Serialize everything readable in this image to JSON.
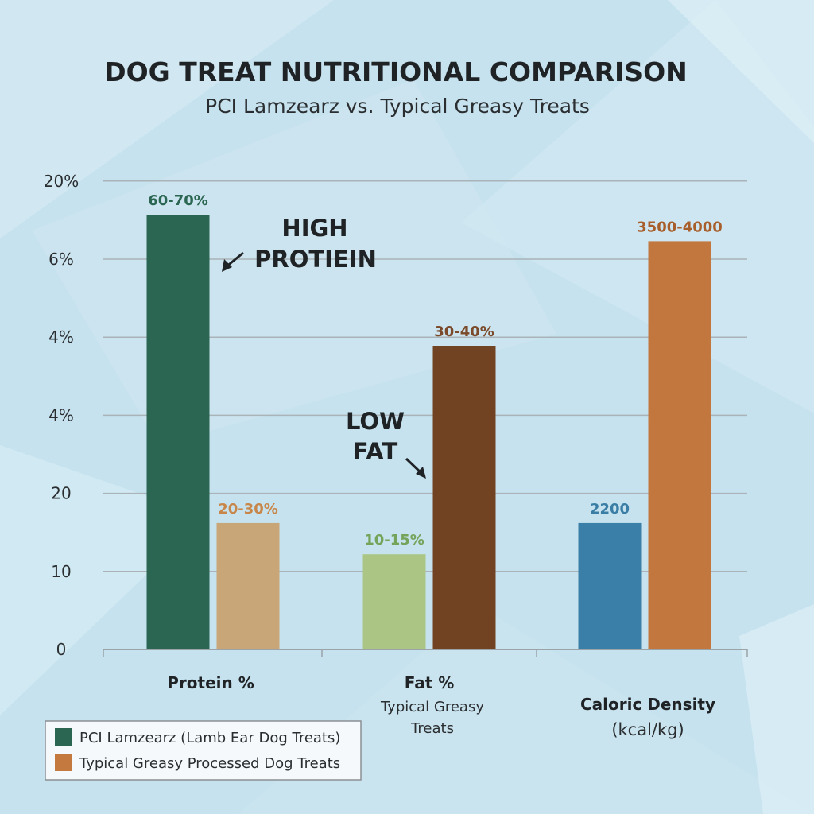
{
  "chart_data": {
    "type": "bar",
    "title": "DOG TREAT NUTRITIONAL COMPARISON",
    "subtitle": "PCI Lamzearz vs. Typical Greasy Treats",
    "y_tick_labels": [
      "0",
      "10",
      "20",
      "4%",
      "4%",
      "6%",
      "20%"
    ],
    "grid": true,
    "legend_position": "bottom-left",
    "categories": [
      {
        "label": "Protein %",
        "sublabel": ""
      },
      {
        "label": "Fat %",
        "sublabel": "Typical Greasy Treats"
      },
      {
        "label": "Caloric Density",
        "sublabel": "(kcal/kg)"
      }
    ],
    "bars": [
      {
        "category": 0,
        "series": 0,
        "grid_units": 5.57,
        "label": "60-70%",
        "color": "#2a6651",
        "label_color": "#2a6651"
      },
      {
        "category": 0,
        "series": 1,
        "grid_units": 1.62,
        "label": "20-30%",
        "color": "#c9a677",
        "label_color": "#c8874a"
      },
      {
        "category": 1,
        "series": 0,
        "grid_units": 1.22,
        "label": "10-15%",
        "color": "#abc684",
        "label_color": "#74a35a"
      },
      {
        "category": 1,
        "series": 1,
        "grid_units": 3.89,
        "label": "30-40%",
        "color": "#714322",
        "label_color": "#7a4a2a"
      },
      {
        "category": 2,
        "series": 0,
        "grid_units": 1.62,
        "label": "2200",
        "color": "#3a7fa7",
        "label_color": "#3a7ea6"
      },
      {
        "category": 2,
        "series": 1,
        "grid_units": 5.23,
        "label": "3500-4000",
        "color": "#c1773e",
        "label_color": "#a85e2a"
      }
    ],
    "annotations": [
      {
        "lines": [
          "HIGH",
          "PROTIEIN"
        ]
      },
      {
        "lines": [
          "LOW",
          "FAT"
        ]
      }
    ],
    "legend": [
      {
        "label": "PCI Lamzearz (Lamb Ear Dog Treats)",
        "color": "#2a6651"
      },
      {
        "label": "Typical Greasy Processed Dog Treats",
        "color": "#c47a3f"
      }
    ]
  }
}
